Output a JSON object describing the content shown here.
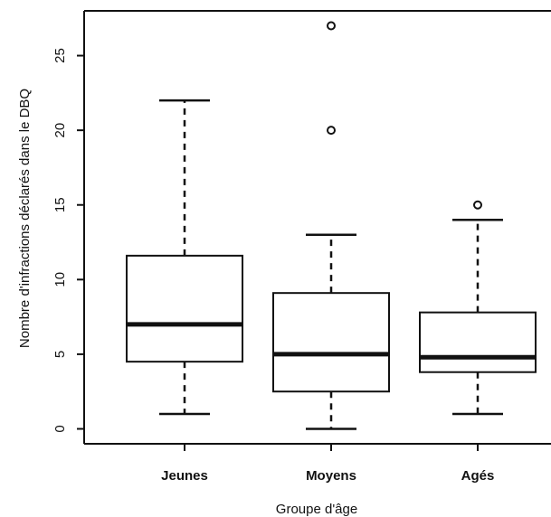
{
  "chart_data": {
    "type": "boxplot",
    "title": "",
    "xlabel": "Groupe d'âge",
    "ylabel": "Nombre d'infractions déclarés dans le DBQ",
    "categories": [
      "Jeunes",
      "Moyens",
      "Agés"
    ],
    "ylim": [
      -1,
      28
    ],
    "yticks": [
      0,
      5,
      10,
      15,
      20,
      25
    ],
    "ytick_labels": [
      "0",
      "5",
      "10",
      "15",
      "20",
      "25"
    ],
    "grid": false,
    "boxes": [
      {
        "category": "Jeunes",
        "whisker_low": 1,
        "q1": 4.5,
        "median": 7,
        "q3": 11.6,
        "whisker_high": 22,
        "outliers": []
      },
      {
        "category": "Moyens",
        "whisker_low": 0,
        "q1": 2.5,
        "median": 5,
        "q3": 9.1,
        "whisker_high": 13,
        "outliers": [
          20,
          27
        ]
      },
      {
        "category": "Agés",
        "whisker_low": 1,
        "q1": 3.8,
        "median": 4.8,
        "q3": 7.8,
        "whisker_high": 14,
        "outliers": [
          15
        ]
      }
    ]
  }
}
